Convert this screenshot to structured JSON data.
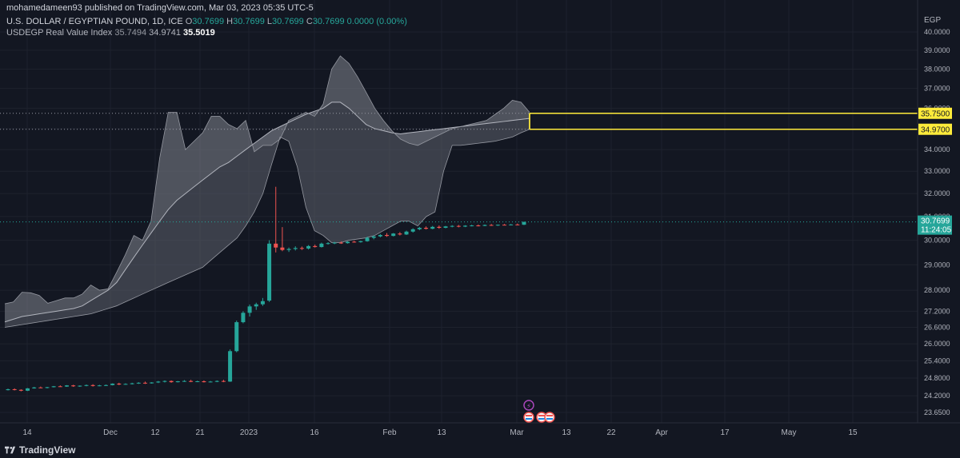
{
  "publisher": "mohamedameen93 published on TradingView.com, Mar 03, 2023 05:35 UTC-5",
  "symbol": {
    "name": "U.S. DOLLAR / EGYPTIAN POUND, 1D, ICE",
    "open_label": "O",
    "open": "30.7699",
    "high_label": "H",
    "high": "30.7699",
    "low_label": "L",
    "low": "30.7699",
    "close_label": "C",
    "close": "30.7699",
    "change": "0.0000 (0.00%)"
  },
  "indicator": {
    "name": "USDEGP Real Value Index",
    "v1": "35.7494",
    "v2": "34.9741",
    "v3": "35.5019"
  },
  "currency": "EGP",
  "last_price": {
    "value": "30.7699",
    "countdown": "11:24:05",
    "color": "#26a69a"
  },
  "levels": [
    {
      "label": "35.7500",
      "value": 35.75
    },
    {
      "label": "34.9700",
      "value": 34.97
    }
  ],
  "brand": "TradingView",
  "colors": {
    "up": "#26a69a",
    "down": "#ef5350",
    "level": "#ffeb3b",
    "band": "#787b86"
  },
  "chart_data": {
    "type": "candlestick",
    "y_ticks": [
      "40.0000",
      "39.0000",
      "38.0000",
      "37.0000",
      "36.0000",
      "35.0000",
      "34.0000",
      "33.0000",
      "32.0000",
      "31.0000",
      "30.0000",
      "29.0000",
      "28.0000",
      "27.2000",
      "26.6000",
      "26.0000",
      "25.4000",
      "24.8000",
      "24.2000",
      "23.6500"
    ],
    "x_ticks": [
      "14",
      "Dec",
      "12",
      "21",
      "2023",
      "16",
      "Feb",
      "13",
      "22",
      "Mar",
      "13",
      "22",
      "Apr",
      "17",
      "May",
      "15"
    ],
    "candles": [
      [
        24.39,
        24.44,
        24.38,
        24.42
      ],
      [
        24.42,
        24.45,
        24.38,
        24.4
      ],
      [
        24.4,
        24.42,
        24.35,
        24.37
      ],
      [
        24.37,
        24.46,
        24.36,
        24.45
      ],
      [
        24.45,
        24.5,
        24.44,
        24.48
      ],
      [
        24.48,
        24.51,
        24.46,
        24.47
      ],
      [
        24.47,
        24.5,
        24.45,
        24.49
      ],
      [
        24.49,
        24.53,
        24.48,
        24.52
      ],
      [
        24.52,
        24.55,
        24.5,
        24.51
      ],
      [
        24.51,
        24.56,
        24.5,
        24.55
      ],
      [
        24.55,
        24.57,
        24.5,
        24.52
      ],
      [
        24.52,
        24.55,
        24.5,
        24.54
      ],
      [
        24.54,
        24.58,
        24.52,
        24.56
      ],
      [
        24.56,
        24.59,
        24.51,
        24.53
      ],
      [
        24.53,
        24.57,
        24.52,
        24.55
      ],
      [
        24.55,
        24.58,
        24.53,
        24.56
      ],
      [
        24.56,
        24.62,
        24.55,
        24.61
      ],
      [
        24.61,
        24.64,
        24.56,
        24.58
      ],
      [
        24.58,
        24.62,
        24.57,
        24.6
      ],
      [
        24.6,
        24.64,
        24.58,
        24.62
      ],
      [
        24.62,
        24.66,
        24.6,
        24.64
      ],
      [
        24.64,
        24.68,
        24.6,
        24.62
      ],
      [
        24.62,
        24.66,
        24.61,
        24.65
      ],
      [
        24.65,
        24.7,
        24.63,
        24.68
      ],
      [
        24.68,
        24.72,
        24.65,
        24.7
      ],
      [
        24.7,
        24.72,
        24.64,
        24.66
      ],
      [
        24.66,
        24.7,
        24.65,
        24.69
      ],
      [
        24.69,
        24.73,
        24.67,
        24.7
      ],
      [
        24.7,
        24.74,
        24.66,
        24.67
      ],
      [
        24.67,
        24.71,
        24.66,
        24.69
      ],
      [
        24.69,
        24.72,
        24.65,
        24.66
      ],
      [
        24.66,
        24.7,
        24.65,
        24.68
      ],
      [
        24.68,
        24.72,
        24.66,
        24.7
      ],
      [
        24.7,
        24.74,
        24.66,
        24.68
      ],
      [
        24.68,
        25.8,
        24.67,
        25.74
      ],
      [
        25.74,
        26.85,
        25.7,
        26.79
      ],
      [
        26.79,
        27.2,
        26.75,
        27.14
      ],
      [
        27.14,
        27.45,
        27.0,
        27.38
      ],
      [
        27.38,
        27.52,
        27.25,
        27.46
      ],
      [
        27.46,
        27.7,
        27.4,
        27.58
      ],
      [
        27.6,
        30.0,
        27.55,
        29.86
      ],
      [
        29.86,
        32.3,
        29.5,
        29.7
      ],
      [
        29.7,
        30.55,
        29.55,
        29.6
      ],
      [
        29.6,
        29.7,
        29.52,
        29.64
      ],
      [
        29.64,
        29.75,
        29.58,
        29.68
      ],
      [
        29.68,
        29.74,
        29.6,
        29.66
      ],
      [
        29.66,
        29.8,
        29.62,
        29.76
      ],
      [
        29.76,
        29.82,
        29.7,
        29.72
      ],
      [
        29.72,
        29.9,
        29.7,
        29.86
      ],
      [
        29.86,
        29.92,
        29.82,
        29.88
      ],
      [
        29.88,
        29.93,
        29.84,
        29.9
      ],
      [
        29.9,
        29.95,
        29.85,
        29.88
      ],
      [
        29.88,
        29.96,
        29.86,
        29.94
      ],
      [
        29.94,
        29.98,
        29.9,
        29.92
      ],
      [
        29.92,
        29.98,
        29.9,
        29.96
      ],
      [
        29.96,
        30.15,
        29.94,
        30.1
      ],
      [
        30.1,
        30.2,
        30.04,
        30.16
      ],
      [
        30.16,
        30.26,
        30.12,
        30.22
      ],
      [
        30.22,
        30.3,
        30.14,
        30.18
      ],
      [
        30.18,
        30.3,
        30.16,
        30.28
      ],
      [
        30.28,
        30.34,
        30.2,
        30.24
      ],
      [
        30.24,
        30.4,
        30.22,
        30.36
      ],
      [
        30.36,
        30.5,
        30.32,
        30.46
      ],
      [
        30.46,
        30.56,
        30.42,
        30.52
      ],
      [
        30.52,
        30.58,
        30.45,
        30.48
      ],
      [
        30.48,
        30.6,
        30.46,
        30.56
      ],
      [
        30.56,
        30.62,
        30.48,
        30.52
      ],
      [
        30.52,
        30.6,
        30.5,
        30.58
      ],
      [
        30.58,
        30.63,
        30.54,
        30.6
      ],
      [
        30.6,
        30.64,
        30.54,
        30.57
      ],
      [
        30.57,
        30.63,
        30.55,
        30.61
      ],
      [
        30.61,
        30.65,
        30.58,
        30.62
      ],
      [
        30.62,
        30.66,
        30.58,
        30.6
      ],
      [
        30.6,
        30.66,
        30.59,
        30.64
      ],
      [
        30.64,
        30.68,
        30.6,
        30.62
      ],
      [
        30.62,
        30.66,
        30.6,
        30.65
      ],
      [
        30.65,
        30.68,
        30.62,
        30.64
      ],
      [
        30.64,
        30.68,
        30.62,
        30.66
      ],
      [
        30.66,
        30.7,
        30.63,
        30.65
      ],
      [
        30.65,
        30.78,
        30.64,
        30.77
      ]
    ],
    "band_upper": [
      27.48,
      27.55,
      27.92,
      27.9,
      27.8,
      27.5,
      27.6,
      27.7,
      27.7,
      27.85,
      28.2,
      28.0,
      28.05,
      28.7,
      29.4,
      30.2,
      30.0,
      30.8,
      33.6,
      35.8,
      35.8,
      34.0,
      34.4,
      34.8,
      35.6,
      35.6,
      35.2,
      35.0,
      35.4,
      33.9,
      34.2,
      34.2,
      34.5,
      35.4,
      35.6,
      35.8,
      35.6,
      36.2,
      38.0,
      38.7,
      38.3,
      37.6,
      36.8,
      36.0,
      35.4,
      34.9,
      34.5,
      34.3,
      34.2,
      34.4,
      34.6,
      34.8,
      35.0,
      35.1,
      35.2,
      35.3,
      35.4,
      35.7,
      36.0,
      36.4,
      36.3,
      35.8
    ],
    "band_mid": [
      26.8,
      26.9,
      27.0,
      27.05,
      27.1,
      27.15,
      27.2,
      27.25,
      27.3,
      27.4,
      27.6,
      27.8,
      28.0,
      28.3,
      28.8,
      29.3,
      29.8,
      30.3,
      30.8,
      31.3,
      31.7,
      32.0,
      32.3,
      32.6,
      32.9,
      33.2,
      33.4,
      33.7,
      34.0,
      34.3,
      34.6,
      34.9,
      35.1,
      35.3,
      35.5,
      35.7,
      35.85,
      36.0,
      36.3,
      36.3,
      36.0,
      35.6,
      35.2,
      35.0,
      34.9,
      34.8,
      34.75,
      34.8,
      34.85,
      34.9,
      34.95,
      35.0,
      35.05,
      35.1,
      35.15,
      35.2,
      35.25,
      35.3,
      35.35,
      35.4,
      35.45,
      35.5
    ],
    "band_lower": [
      26.6,
      26.65,
      26.7,
      26.75,
      26.8,
      26.85,
      26.9,
      26.95,
      27.0,
      27.05,
      27.1,
      27.2,
      27.3,
      27.4,
      27.55,
      27.7,
      27.85,
      28.0,
      28.15,
      28.3,
      28.45,
      28.6,
      28.75,
      28.9,
      29.2,
      29.5,
      29.8,
      30.1,
      30.6,
      31.2,
      32.0,
      33.3,
      34.6,
      34.4,
      33.2,
      31.4,
      30.4,
      30.2,
      29.9,
      29.9,
      30.0,
      30.05,
      30.1,
      30.2,
      30.4,
      30.6,
      30.8,
      30.8,
      30.6,
      31.0,
      31.2,
      33.0,
      34.2,
      34.2,
      34.25,
      34.3,
      34.35,
      34.4,
      34.5,
      34.6,
      34.8,
      34.97
    ]
  }
}
